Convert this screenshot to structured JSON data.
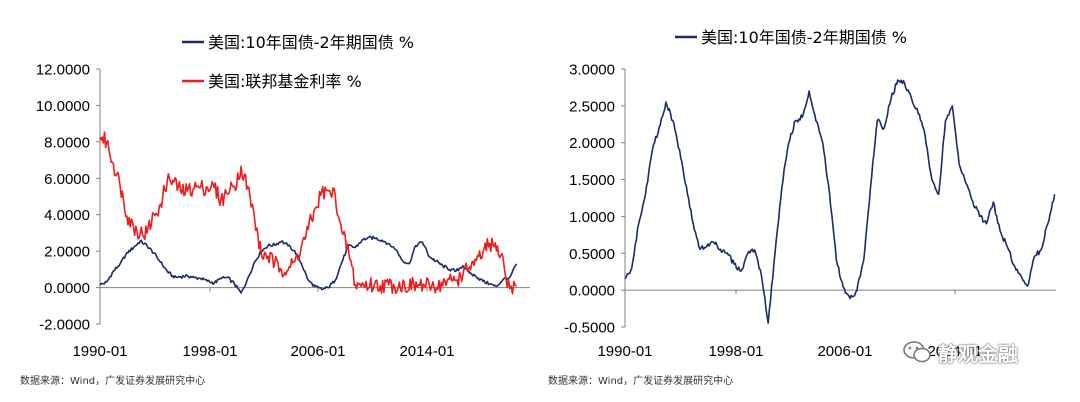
{
  "colors": {
    "navy": "#1b2a6b",
    "red": "#ee1c1c"
  },
  "source_note": "数据来源：Wind，广发证券发展研究中心",
  "watermark": {
    "text": "静观金融",
    "icon": "wechat-icon"
  },
  "chart_data": [
    {
      "type": "line",
      "x_ticks": [
        "1990-01",
        "1998-01",
        "2006-01",
        "2014-01"
      ],
      "x_range": [
        1990.0,
        2022.0
      ],
      "y_ticks": [
        "12.0000",
        "10.0000",
        "8.0000",
        "6.0000",
        "4.0000",
        "2.0000",
        "0.0000",
        "-2.0000"
      ],
      "ylim": [
        -2,
        12
      ],
      "legend_position": "top",
      "series": [
        {
          "name": "美国:10年国债-2年期国债 %",
          "color": "#1b2a6b",
          "x": [
            1990.0,
            1990.5,
            1991.0,
            1991.5,
            1992.0,
            1992.5,
            1993.0,
            1993.5,
            1994.0,
            1994.5,
            1995.0,
            1995.5,
            1996.0,
            1996.5,
            1997.0,
            1997.5,
            1998.0,
            1998.5,
            1999.0,
            1999.5,
            2000.0,
            2000.5,
            2001.0,
            2001.5,
            2002.0,
            2002.5,
            2003.0,
            2003.5,
            2004.0,
            2004.5,
            2005.0,
            2005.5,
            2006.0,
            2006.5,
            2007.0,
            2007.5,
            2008.0,
            2008.5,
            2009.0,
            2009.5,
            2010.0,
            2010.5,
            2011.0,
            2011.5,
            2012.0,
            2012.5,
            2013.0,
            2013.5,
            2014.0,
            2014.5,
            2015.0,
            2015.5,
            2016.0,
            2016.5,
            2017.0,
            2017.5,
            2018.0,
            2018.5,
            2019.0,
            2019.5,
            2020.0,
            2020.5,
            2021.0
          ],
          "values": [
            0.15,
            0.3,
            0.9,
            1.3,
            1.9,
            2.2,
            2.55,
            2.3,
            1.9,
            1.4,
            0.9,
            0.55,
            0.6,
            0.65,
            0.55,
            0.5,
            0.35,
            0.25,
            0.5,
            0.55,
            0.2,
            -0.3,
            0.5,
            1.4,
            2.0,
            2.3,
            2.35,
            2.55,
            2.3,
            2.0,
            1.3,
            0.4,
            0.05,
            -0.1,
            0.0,
            0.4,
            1.4,
            2.3,
            2.2,
            2.6,
            2.75,
            2.7,
            2.6,
            2.4,
            2.1,
            1.5,
            1.3,
            2.3,
            2.5,
            1.7,
            1.45,
            1.2,
            1.0,
            0.9,
            1.2,
            0.8,
            0.6,
            0.35,
            0.2,
            0.05,
            0.45,
            0.55,
            1.3
          ]
        },
        {
          "name": "美国:联邦基金利率 %",
          "color": "#ee1c1c",
          "x": [
            1990.0,
            1990.5,
            1991.0,
            1991.5,
            1992.0,
            1992.5,
            1993.0,
            1993.5,
            1994.0,
            1994.5,
            1995.0,
            1995.5,
            1996.0,
            1996.5,
            1997.0,
            1997.5,
            1998.0,
            1998.5,
            1999.0,
            1999.5,
            2000.0,
            2000.5,
            2001.0,
            2001.5,
            2002.0,
            2002.5,
            2003.0,
            2003.5,
            2004.0,
            2004.5,
            2005.0,
            2005.5,
            2006.0,
            2006.5,
            2007.0,
            2007.5,
            2008.0,
            2008.5,
            2009.0,
            2014.5,
            2015.5,
            2016.0,
            2016.5,
            2017.0,
            2017.5,
            2018.0,
            2018.5,
            2019.0,
            2019.5,
            2020.0,
            2020.3,
            2020.6,
            2021.0
          ],
          "values": [
            8.3,
            8.0,
            6.8,
            5.6,
            4.0,
            3.3,
            3.0,
            3.0,
            4.0,
            4.5,
            5.9,
            5.8,
            5.3,
            5.3,
            5.5,
            5.5,
            5.5,
            5.5,
            4.8,
            5.2,
            5.6,
            6.6,
            5.5,
            3.8,
            1.8,
            1.75,
            1.3,
            1.05,
            1.0,
            1.4,
            2.3,
            3.2,
            4.3,
            5.25,
            5.25,
            5.1,
            3.0,
            2.0,
            0.15,
            0.1,
            0.15,
            0.4,
            0.4,
            0.7,
            1.15,
            1.4,
            1.9,
            2.4,
            2.1,
            1.6,
            0.07,
            0.08,
            0.08
          ]
        }
      ]
    },
    {
      "type": "line",
      "x_ticks": [
        "1990-01",
        "1998-01",
        "2006-01",
        "2014-01"
      ],
      "x_range": [
        1990.0,
        2021.6
      ],
      "y_ticks": [
        "3.0000",
        "2.5000",
        "2.0000",
        "1.5000",
        "1.0000",
        "0.5000",
        "0.0000",
        "-0.5000"
      ],
      "ylim": [
        -0.5,
        3
      ],
      "legend_position": "top",
      "series": [
        {
          "name": "美国:10年国债-2年期国债 %",
          "color": "#1b2a6b",
          "x": [
            1990.0,
            1990.5,
            1991.0,
            1991.5,
            1992.0,
            1992.5,
            1993.0,
            1993.5,
            1994.0,
            1994.5,
            1995.0,
            1995.5,
            1996.0,
            1996.5,
            1997.0,
            1997.5,
            1998.0,
            1998.5,
            1999.0,
            1999.5,
            2000.0,
            2000.5,
            2001.0,
            2001.5,
            2002.0,
            2002.5,
            2003.0,
            2003.5,
            2004.0,
            2004.5,
            2005.0,
            2005.5,
            2006.0,
            2006.5,
            2007.0,
            2007.5,
            2008.0,
            2008.5,
            2009.0,
            2009.5,
            2010.0,
            2010.5,
            2011.0,
            2011.5,
            2012.0,
            2012.5,
            2013.0,
            2013.5,
            2014.0,
            2014.5,
            2015.0,
            2015.5,
            2016.0,
            2016.5,
            2017.0,
            2017.5,
            2018.0,
            2018.5,
            2019.0,
            2019.5,
            2020.0,
            2020.5,
            2021.0,
            2021.5
          ],
          "values": [
            0.15,
            0.3,
            0.9,
            1.3,
            1.9,
            2.2,
            2.55,
            2.3,
            1.9,
            1.4,
            0.9,
            0.55,
            0.6,
            0.65,
            0.55,
            0.5,
            0.35,
            0.25,
            0.5,
            0.55,
            0.2,
            -0.45,
            0.5,
            1.4,
            2.0,
            2.3,
            2.35,
            2.7,
            2.3,
            2.0,
            1.3,
            0.4,
            0.05,
            -0.12,
            0.0,
            0.4,
            1.4,
            2.3,
            2.2,
            2.6,
            2.85,
            2.8,
            2.6,
            2.4,
            2.1,
            1.5,
            1.3,
            2.3,
            2.5,
            1.7,
            1.45,
            1.2,
            1.0,
            0.9,
            1.2,
            0.8,
            0.6,
            0.35,
            0.2,
            0.05,
            0.45,
            0.55,
            0.9,
            1.3
          ]
        }
      ]
    }
  ]
}
